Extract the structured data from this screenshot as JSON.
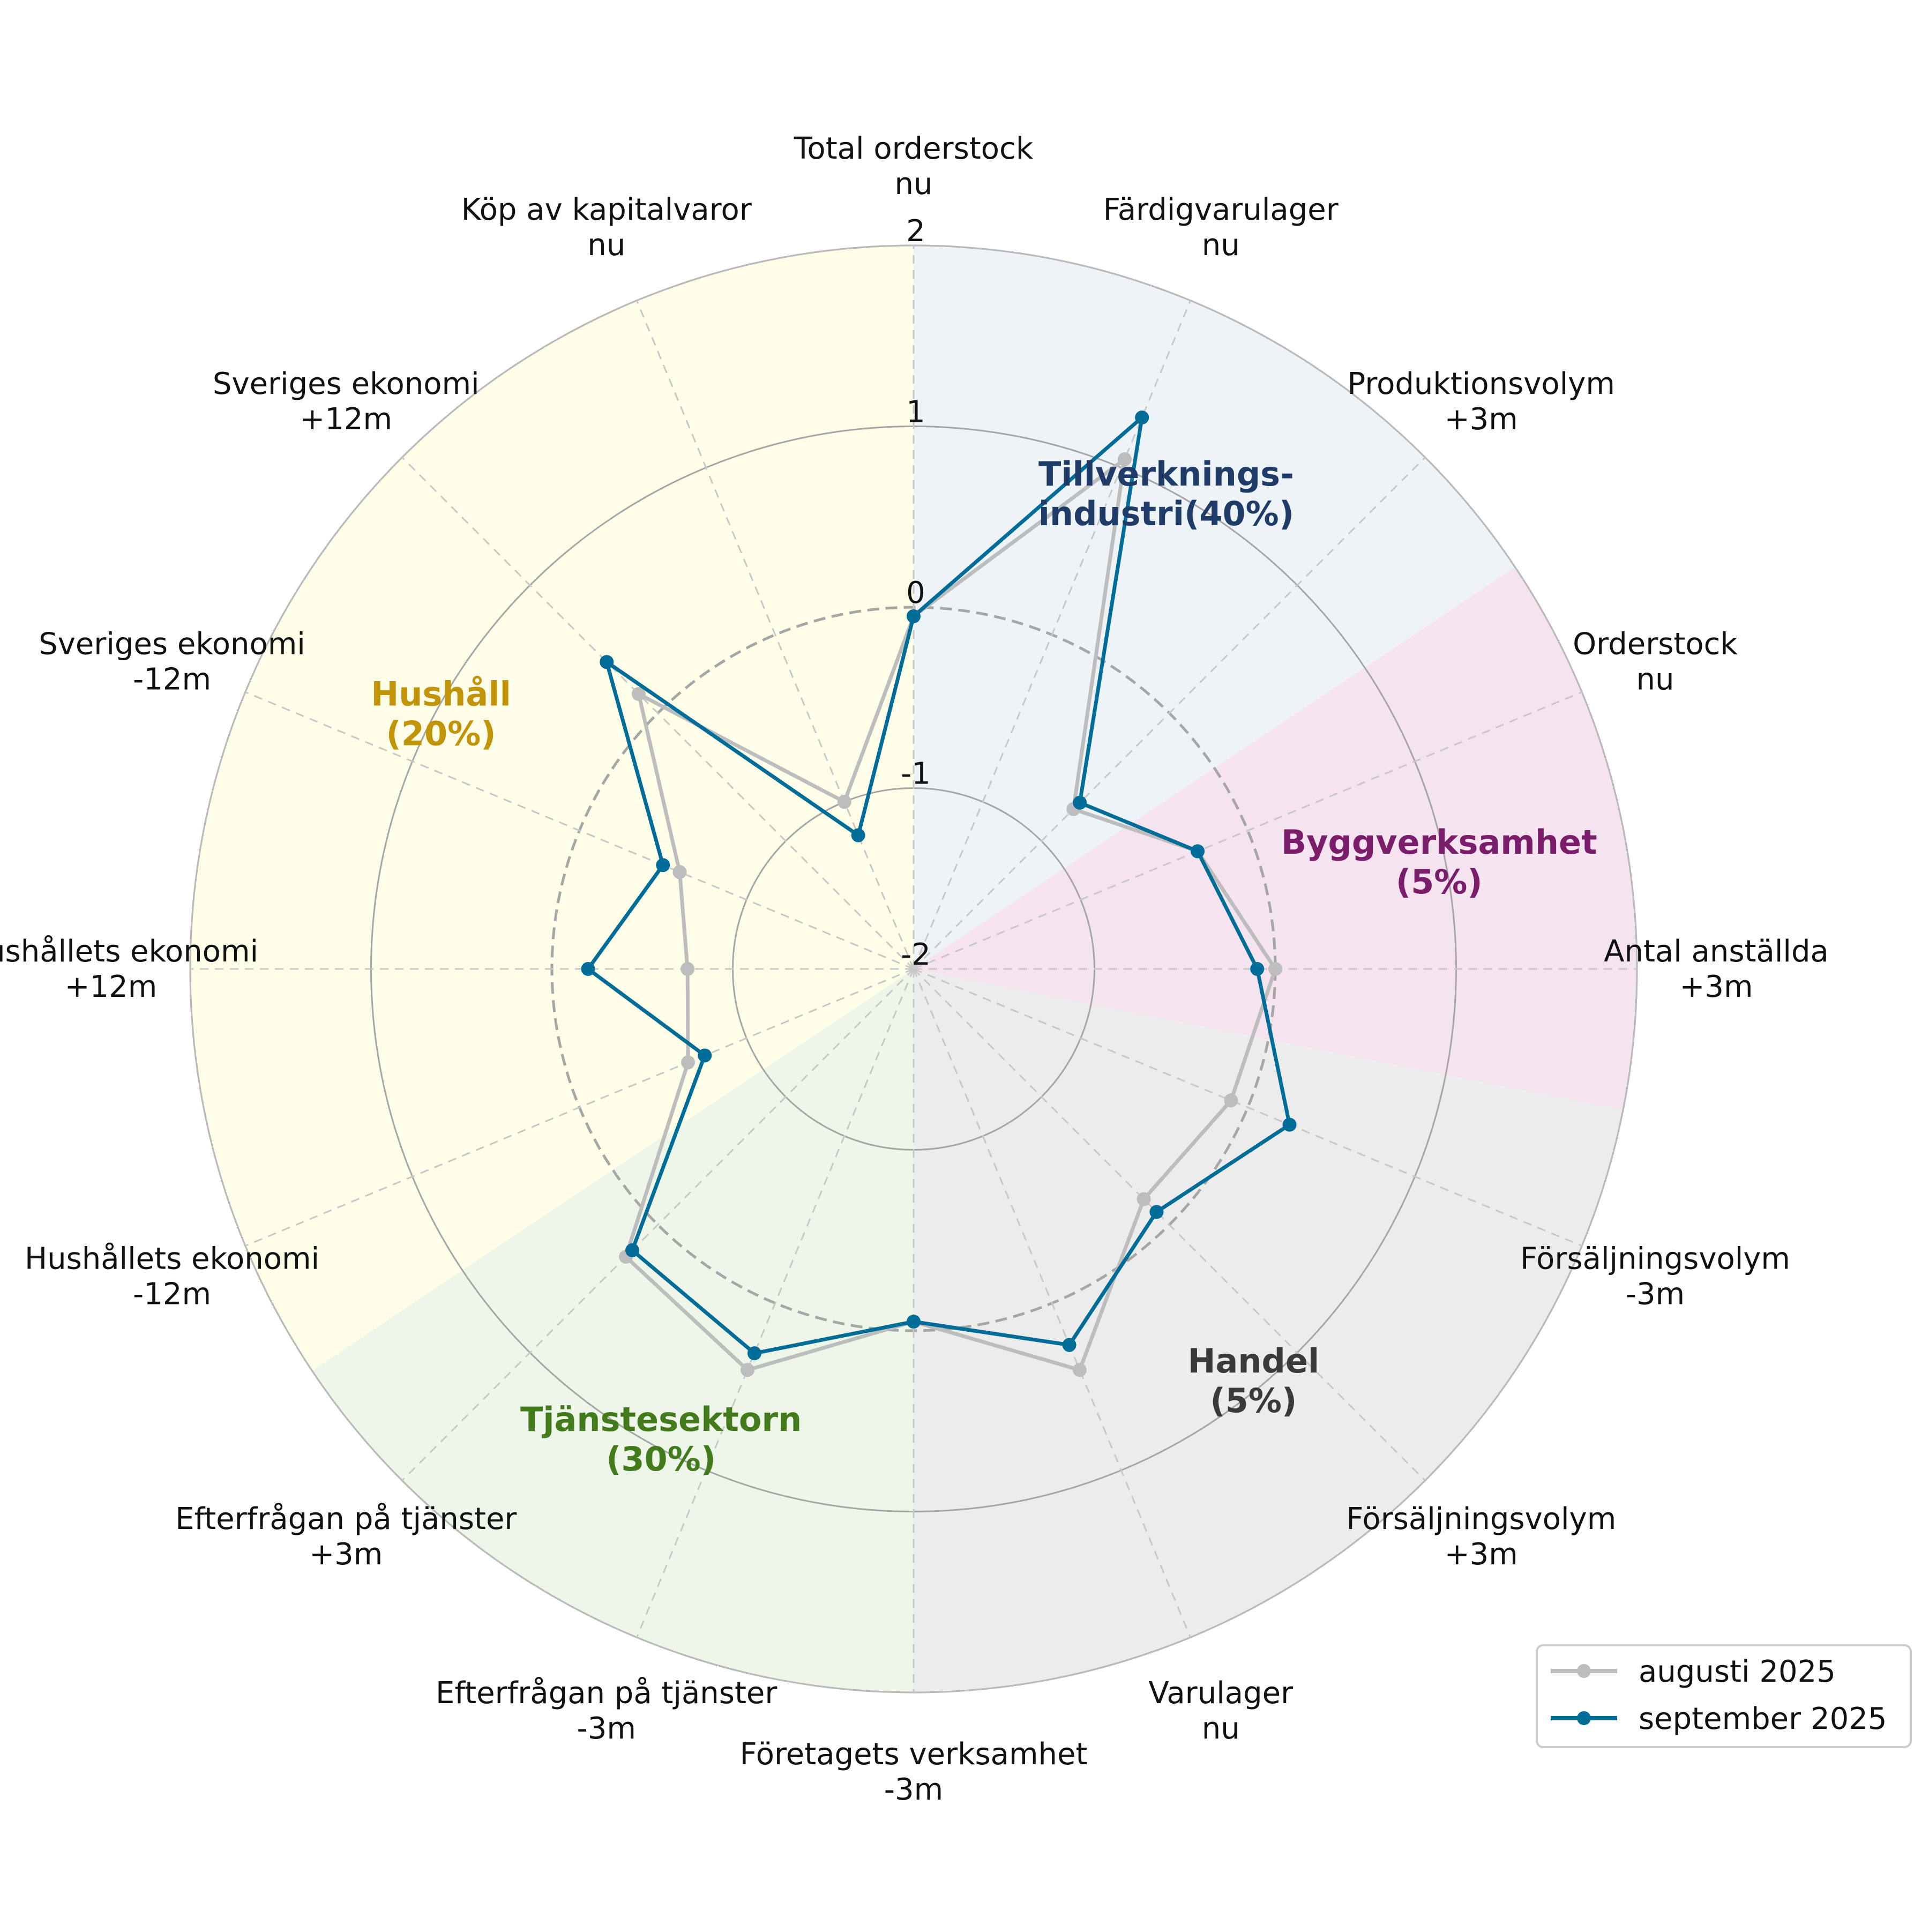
{
  "colors": {
    "august": "#bdbdbd",
    "september": "#006d98",
    "grid": "#a6a6a6",
    "spoke": "#c8c8c8",
    "zero_ring": "#a6a6a6"
  },
  "chart_data": {
    "type": "radar",
    "title": "",
    "r_range": [
      -2,
      2
    ],
    "r_ticks": [
      -2,
      -1,
      0,
      1,
      2
    ],
    "r_tick_labels": [
      "-2",
      "-1",
      "0",
      "1",
      "2"
    ],
    "direction": "clockwise",
    "start": "top",
    "categories": [
      [
        "Total orderstock",
        "nu"
      ],
      [
        "Färdigvarulager",
        "nu"
      ],
      [
        "Produktionsvolym",
        "+3m"
      ],
      [
        "Orderstock",
        "nu"
      ],
      [
        "Antal anställda",
        "+3m"
      ],
      [
        "Försäljningsvolym",
        "-3m"
      ],
      [
        "Försäljningsvolym",
        "+3m"
      ],
      [
        "Varulager",
        "nu"
      ],
      [
        "Företagets verksamhet",
        "-3m"
      ],
      [
        "Efterfrågan på tjänster",
        "-3m"
      ],
      [
        "Efterfrågan på tjänster",
        "+3m"
      ],
      [
        "Hushållets ekonomi",
        "-12m"
      ],
      [
        "Hushållets ekonomi",
        "+12m"
      ],
      [
        "Sveriges ekonomi",
        "-12m"
      ],
      [
        "Sveriges ekonomi",
        "+12m"
      ],
      [
        "Köp av kapitalvaror",
        "nu"
      ]
    ],
    "sectors": [
      {
        "label": [
          "Tillverknings-",
          "industri(40%)"
        ],
        "start_index": 0,
        "end_index": 2.5,
        "fill": "#eef3f8",
        "label_color": "#1f3c68"
      },
      {
        "label": [
          "Byggverksamhet",
          "(5%)"
        ],
        "start_index": 2.5,
        "end_index": 4.5,
        "fill": "#f5e4f0",
        "label_color": "#7a1e6b"
      },
      {
        "label": [
          "Handel",
          "(5%)"
        ],
        "start_index": 4.5,
        "end_index": 8.0,
        "fill": "#ececec",
        "label_color": "#3a3a3a"
      },
      {
        "label": [
          "Tjänstesektorn",
          "(30%)"
        ],
        "start_index": 8.0,
        "end_index": 10.5,
        "fill": "#edf6e8",
        "label_color": "#437a1c"
      },
      {
        "label": [
          "Hushåll",
          "(20%)"
        ],
        "start_index": 10.5,
        "end_index": 16.0,
        "fill": "#fefde8",
        "label_color": "#c29408"
      }
    ],
    "series": [
      {
        "name": "augusti 2025",
        "color": "#bdbdbd",
        "values": [
          -0.05,
          1.05,
          -0.75,
          -0.3,
          0.0,
          -0.1,
          -0.2,
          0.4,
          -0.05,
          0.4,
          0.25,
          -0.65,
          -0.75,
          -0.6,
          0.15,
          -1.0
        ]
      },
      {
        "name": "september 2025",
        "color": "#006d98",
        "values": [
          -0.05,
          1.3,
          -0.7,
          -0.3,
          -0.1,
          0.25,
          -0.1,
          0.25,
          -0.05,
          0.3,
          0.2,
          -0.75,
          -0.2,
          -0.5,
          0.4,
          -1.2
        ]
      }
    ],
    "legend": {
      "placement": "bottom-right",
      "entries": [
        "augusti 2025",
        "september 2025"
      ]
    }
  }
}
